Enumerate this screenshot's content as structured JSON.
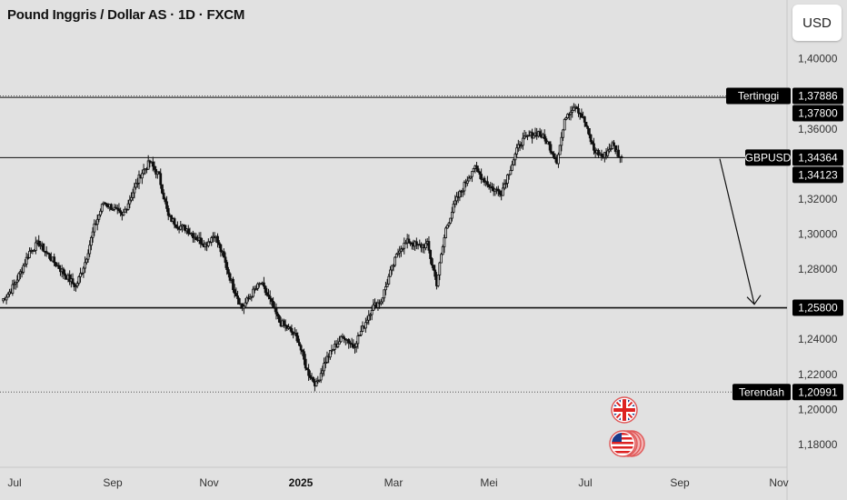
{
  "header": {
    "title": "Pound Inggris / Dollar AS · 1D · FXCM",
    "currency_button": "USD"
  },
  "colors": {
    "background": "#e1e1e1",
    "candle": "#111111",
    "label_bg": "#000000",
    "label_text": "#ffffff"
  },
  "icons": [
    "uk-flag-icon",
    "us-flag-icon"
  ],
  "chart_data": {
    "type": "candlestick",
    "symbol": "GBPUSD",
    "timeframe": "1D",
    "x": {
      "ticks": [
        "Jul",
        "Sep",
        "Nov",
        "2025",
        "Mar",
        "Mei",
        "Jul",
        "Sep",
        "Nov"
      ],
      "bold_ticks": [
        "2025"
      ]
    },
    "y": {
      "ylim": [
        1.167,
        1.418
      ],
      "ticks": [
        "1,40000",
        "1,36000",
        "1,32000",
        "1,30000",
        "1,28000",
        "1,24000",
        "1,22000",
        "1,20000",
        "1,18000"
      ]
    },
    "price_series": [
      1.262,
      1.268,
      1.278,
      1.29,
      1.295,
      1.288,
      1.282,
      1.276,
      1.27,
      1.284,
      1.304,
      1.318,
      1.315,
      1.31,
      1.322,
      1.334,
      1.341,
      1.333,
      1.31,
      1.305,
      1.303,
      1.298,
      1.294,
      1.3,
      1.286,
      1.27,
      1.258,
      1.266,
      1.272,
      1.262,
      1.25,
      1.246,
      1.24,
      1.222,
      1.214,
      1.228,
      1.236,
      1.242,
      1.236,
      1.246,
      1.258,
      1.262,
      1.278,
      1.292,
      1.296,
      1.293,
      1.294,
      1.272,
      1.303,
      1.318,
      1.328,
      1.338,
      1.332,
      1.326,
      1.324,
      1.338,
      1.352,
      1.356,
      1.358,
      1.352,
      1.342,
      1.368,
      1.374,
      1.364,
      1.348,
      1.344,
      1.351,
      1.343
    ],
    "levels": [
      {
        "value": 1.37886,
        "label": "1,37886",
        "tag": "Tertinggi",
        "style": "dotted"
      },
      {
        "value": 1.378,
        "label": "1,37800",
        "style": "solid"
      },
      {
        "value": 1.34364,
        "label": "1,34364",
        "tag": "GBPUSD",
        "style": "solid"
      },
      {
        "value": 1.34123,
        "label": "1,34123",
        "style": "none"
      },
      {
        "value": 1.258,
        "label": "1,25800",
        "style": "solid",
        "highlight": true
      },
      {
        "value": 1.20991,
        "label": "1,20991",
        "tag": "Terendah",
        "style": "dotted"
      }
    ],
    "annotation": {
      "type": "arrow",
      "from": 1.343,
      "to": 1.26
    }
  }
}
